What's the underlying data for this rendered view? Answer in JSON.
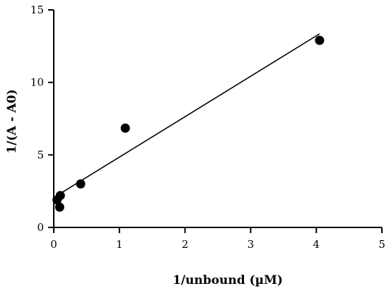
{
  "chart_data": {
    "type": "scatter",
    "title": "",
    "xlabel": "1/unbound (µM)",
    "ylabel": "1/(A - A0)",
    "xlim": [
      0,
      5
    ],
    "ylim": [
      0,
      15
    ],
    "xticks": [
      0,
      1,
      2,
      3,
      4,
      5
    ],
    "yticks": [
      0,
      5,
      10,
      15
    ],
    "grid": false,
    "legend": "none",
    "series": [
      {
        "points": [
          {
            "x": 0.05,
            "y": 1.9
          },
          {
            "x": 0.09,
            "y": 1.4
          },
          {
            "x": 0.1,
            "y": 2.2
          },
          {
            "x": 0.41,
            "y": 3.0
          },
          {
            "x": 1.09,
            "y": 6.85
          },
          {
            "x": 4.05,
            "y": 12.9
          }
        ]
      }
    ],
    "fit_line": {
      "x": [
        0.05,
        4.05
      ],
      "y": [
        2.2,
        13.35
      ]
    },
    "colors": {
      "points": "#000000",
      "axes": "#000000"
    }
  }
}
